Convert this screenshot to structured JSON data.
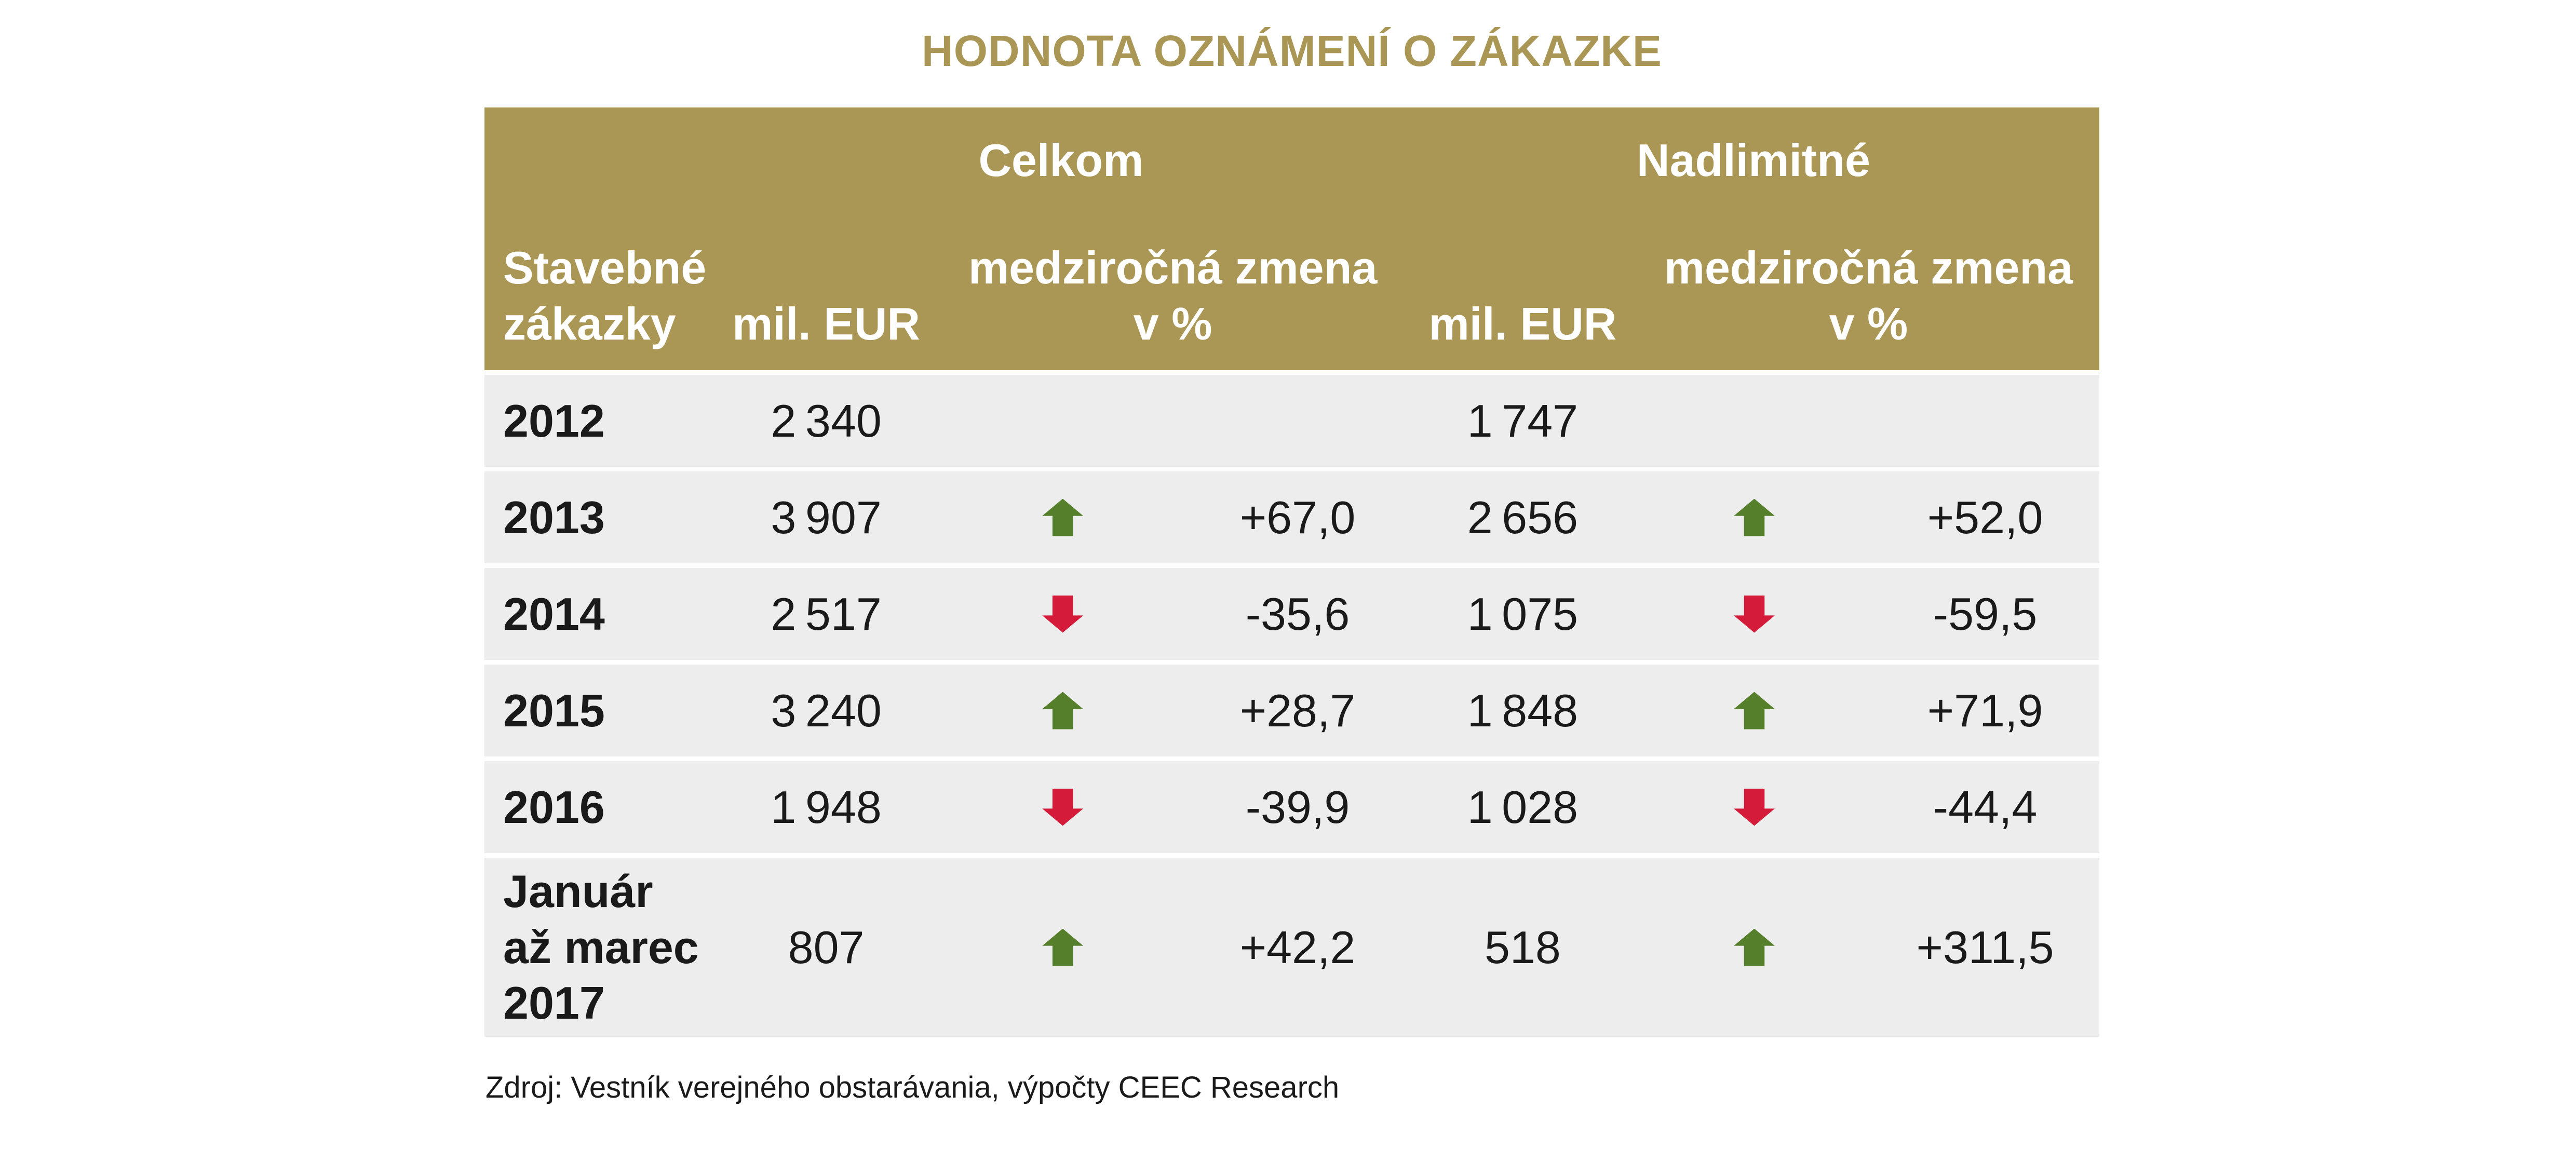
{
  "title": "HODNOTA OZNÁMENÍ O ZÁKAZKE",
  "source": "Zdroj: Vestník verejného obstarávania, výpočty CEEC Research",
  "colors": {
    "accent_gold": "#AB9755",
    "row_gray": "#EDEDED",
    "up_green": "#567F2B",
    "down_red": "#D41C3A",
    "header_text": "#FFFFFF",
    "body_text": "#1A1A1A"
  },
  "table": {
    "group_headers": [
      {
        "label": "Celkom"
      },
      {
        "label": "Nadlimitné"
      }
    ],
    "column_headers": {
      "row_label": "Stavebné\nzákazky",
      "mil_eur": "mil. EUR",
      "yoy_change": "medziročná zmena\nv %"
    },
    "rows": [
      {
        "label": "2012",
        "celkom": {
          "mil_eur": "2 340",
          "trend": "",
          "change": ""
        },
        "nadlimitne": {
          "mil_eur": "1 747",
          "trend": "",
          "change": ""
        }
      },
      {
        "label": "2013",
        "celkom": {
          "mil_eur": "3 907",
          "trend": "up",
          "change": "+67,0"
        },
        "nadlimitne": {
          "mil_eur": "2 656",
          "trend": "up",
          "change": "+52,0"
        }
      },
      {
        "label": "2014",
        "celkom": {
          "mil_eur": "2 517",
          "trend": "down",
          "change": "-35,6"
        },
        "nadlimitne": {
          "mil_eur": "1 075",
          "trend": "down",
          "change": "-59,5"
        }
      },
      {
        "label": "2015",
        "celkom": {
          "mil_eur": "3 240",
          "trend": "up",
          "change": "+28,7"
        },
        "nadlimitne": {
          "mil_eur": "1 848",
          "trend": "up",
          "change": "+71,9"
        }
      },
      {
        "label": "2016",
        "celkom": {
          "mil_eur": "1 948",
          "trend": "down",
          "change": "-39,9"
        },
        "nadlimitne": {
          "mil_eur": "1 028",
          "trend": "down",
          "change": "-44,4"
        }
      },
      {
        "label": "Január\naž marec\n2017",
        "celkom": {
          "mil_eur": "807",
          "trend": "up",
          "change": "+42,2"
        },
        "nadlimitne": {
          "mil_eur": "518",
          "trend": "up",
          "change": "+311,5"
        }
      }
    ]
  },
  "chart_data": {
    "type": "table",
    "title": "HODNOTA OZNÁMENÍ O ZÁKAZKE",
    "column_groups": [
      "Celkom",
      "Nadlimitné"
    ],
    "columns": [
      "Stavebné zákazky",
      "Celkom mil. EUR",
      "Celkom medziročná zmena v %",
      "Nadlimitné mil. EUR",
      "Nadlimitné medziročná zmena v %"
    ],
    "rows": [
      [
        "2012",
        2340,
        null,
        1747,
        null
      ],
      [
        "2013",
        3907,
        67.0,
        2656,
        52.0
      ],
      [
        "2014",
        2517,
        -35.6,
        1075,
        -59.5
      ],
      [
        "2015",
        3240,
        28.7,
        1848,
        71.9
      ],
      [
        "2016",
        1948,
        -39.9,
        1028,
        -44.4
      ],
      [
        "Január až marec 2017",
        807,
        42.2,
        518,
        311.5
      ]
    ],
    "source": "Zdroj: Vestník verejného obstarávania, výpočty CEEC Research"
  }
}
